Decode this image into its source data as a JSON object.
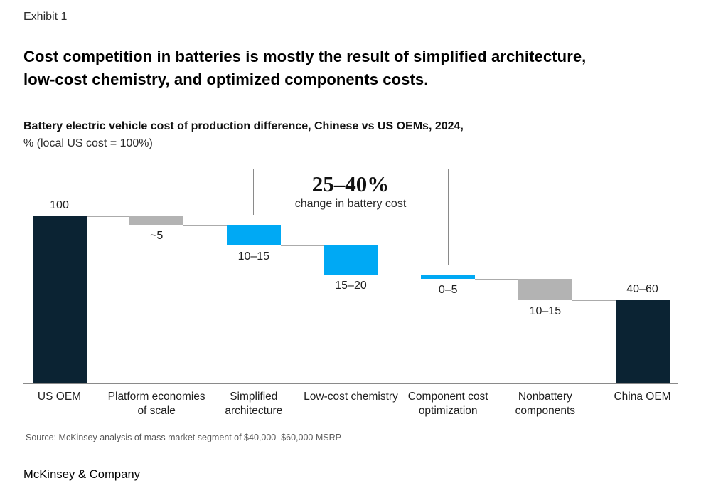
{
  "page": {
    "exhibit_label": "Exhibit 1",
    "title_line1": "Cost competition in batteries is mostly the result of simplified architecture,",
    "title_line2": "low-cost chemistry, and optimized components costs.",
    "subtitle_line1": "Battery electric vehicle cost of production difference, Chinese vs US OEMs, 2024,",
    "subtitle_line2": "% (local US cost = 100%)",
    "source": "Source: McKinsey analysis of mass market segment of $40,000–$60,000 MSRP",
    "footer_brand": "McKinsey & Company"
  },
  "annotation": {
    "headline": "25–40%",
    "caption": "change in battery cost"
  },
  "colors": {
    "navy": "#0B2333",
    "blue": "#00A9F4",
    "gray": "#B3B3B3",
    "connector": "#ABABAB",
    "axis": "#8A8A8A",
    "bracket": "#8A8A8A"
  },
  "chart_data": {
    "type": "bar",
    "subtype": "waterfall",
    "title": "Battery electric vehicle cost of production difference, Chinese vs US OEMs, 2024, % (local US cost = 100%)",
    "ylim": [
      0,
      100
    ],
    "grid": false,
    "legend": "none",
    "categories": [
      "US OEM",
      "Platform economies of scale",
      "Simplified architecture",
      "Low-cost chemistry",
      "Component cost optimization",
      "Nonbattery components",
      "China OEM"
    ],
    "bars": [
      {
        "category": "US OEM",
        "value_label": "100",
        "start": 0,
        "end": 100,
        "drawn_value": 100,
        "color": "navy",
        "role": "total",
        "label_position": "above"
      },
      {
        "category": "Platform economies of scale",
        "value_label": "~5",
        "start": 100,
        "end": 95,
        "drawn_value": 5,
        "color": "gray",
        "role": "decrease",
        "label_position": "below"
      },
      {
        "category": "Simplified architecture",
        "value_label": "10–15",
        "start": 95,
        "end": 82.5,
        "drawn_value": 12.5,
        "color": "blue",
        "role": "decrease",
        "label_position": "below"
      },
      {
        "category": "Low-cost chemistry",
        "value_label": "15–20",
        "start": 82.5,
        "end": 65,
        "drawn_value": 17.5,
        "color": "blue",
        "role": "decrease",
        "label_position": "below"
      },
      {
        "category": "Component cost optimization",
        "value_label": "0–5",
        "start": 65,
        "end": 62.5,
        "drawn_value": 2.5,
        "color": "blue",
        "role": "decrease",
        "label_position": "below"
      },
      {
        "category": "Nonbattery components",
        "value_label": "10–15",
        "start": 62.5,
        "end": 50,
        "drawn_value": 12.5,
        "color": "gray",
        "role": "decrease",
        "label_position": "below"
      },
      {
        "category": "China OEM",
        "value_label": "40–60",
        "start": 0,
        "end": 50,
        "drawn_value": 50,
        "color": "navy",
        "role": "total",
        "label_position": "above"
      }
    ],
    "bracket": {
      "from_category": "Simplified architecture",
      "to_category": "Component cost optimization",
      "label": "25–40%",
      "sublabel": "change in battery cost"
    }
  }
}
